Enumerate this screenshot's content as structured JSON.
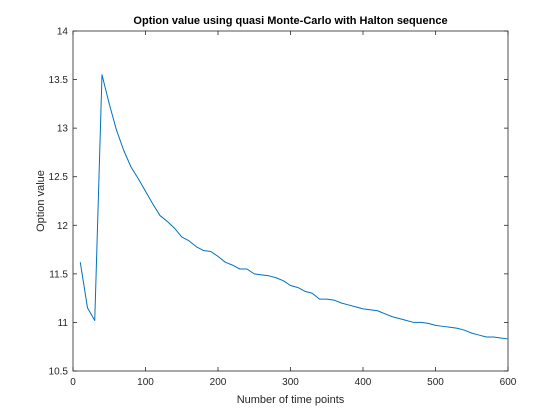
{
  "chart_data": {
    "type": "line",
    "title": "Option value using quasi Monte-Carlo with Halton sequence",
    "xlabel": "Number of time points",
    "ylabel": "Option value",
    "xlim": [
      0,
      600
    ],
    "ylim": [
      10.5,
      14
    ],
    "xticks": [
      0,
      100,
      200,
      300,
      400,
      500,
      600
    ],
    "yticks": [
      10.5,
      11,
      11.5,
      12,
      12.5,
      13,
      13.5,
      14
    ],
    "xtick_labels": [
      "0",
      "100",
      "200",
      "300",
      "400",
      "500",
      "600"
    ],
    "ytick_labels": [
      "10.5",
      "11",
      "11.5",
      "12",
      "12.5",
      "13",
      "13.5",
      "14"
    ],
    "grid": false,
    "line_color": "#0072BD",
    "series": [
      {
        "x": [
          10,
          20,
          30,
          40,
          50,
          60,
          70,
          80,
          90,
          100,
          110,
          120,
          130,
          140,
          150,
          160,
          170,
          180,
          190,
          200,
          210,
          220,
          230,
          240,
          250,
          260,
          270,
          280,
          290,
          300,
          310,
          320,
          330,
          340,
          350,
          360,
          370,
          380,
          390,
          400,
          410,
          420,
          430,
          440,
          450,
          460,
          470,
          480,
          490,
          500,
          510,
          520,
          530,
          540,
          550,
          560,
          570,
          580,
          590,
          600
        ],
        "values": [
          11.62,
          11.15,
          11.02,
          13.55,
          13.25,
          12.98,
          12.77,
          12.6,
          12.48,
          12.35,
          12.22,
          12.1,
          12.04,
          11.97,
          11.88,
          11.84,
          11.78,
          11.74,
          11.73,
          11.68,
          11.62,
          11.59,
          11.55,
          11.55,
          11.5,
          11.49,
          11.48,
          11.46,
          11.43,
          11.38,
          11.36,
          11.32,
          11.3,
          11.24,
          11.24,
          11.23,
          11.2,
          11.18,
          11.16,
          11.14,
          11.13,
          11.12,
          11.09,
          11.06,
          11.04,
          11.02,
          11.0,
          11.0,
          10.99,
          10.97,
          10.96,
          10.95,
          10.94,
          10.92,
          10.89,
          10.87,
          10.85,
          10.85,
          10.84,
          10.83
        ]
      }
    ]
  }
}
